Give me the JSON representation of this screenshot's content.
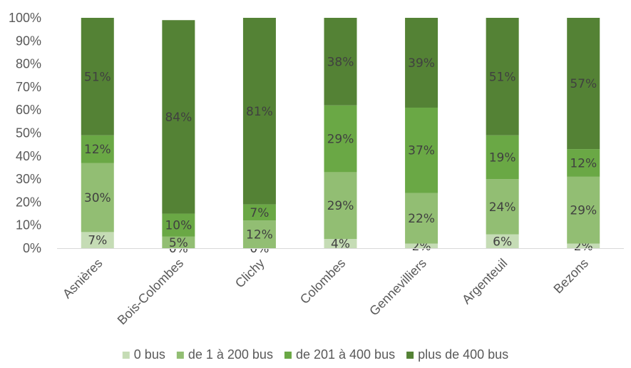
{
  "chart_data": {
    "type": "bar",
    "stacked": true,
    "percent": true,
    "categories": [
      "Asnières",
      "Bois-Colombes",
      "Clichy",
      "Colombes",
      "Gennevilliers",
      "Argenteuil",
      "Bezons"
    ],
    "series": [
      {
        "name": "0 bus",
        "color": "#c5dcb5",
        "values": [
          7,
          0,
          0,
          4,
          2,
          6,
          2
        ],
        "labels": [
          "7%",
          "0%",
          "0%",
          "4%",
          "2%",
          "6%",
          "2%"
        ]
      },
      {
        "name": "de 1 à 200 bus",
        "color": "#92be73",
        "values": [
          30,
          5,
          12,
          29,
          22,
          24,
          29
        ],
        "labels": [
          "30%",
          "5%",
          "12%",
          "29%",
          "22%",
          "24%",
          "29%"
        ]
      },
      {
        "name": "de 201 à 400 bus",
        "color": "#6aa845",
        "values": [
          12,
          10,
          7,
          29,
          37,
          19,
          12
        ],
        "labels": [
          "12%",
          "10%",
          "7%",
          "29%",
          "37%",
          "19%",
          "12%"
        ]
      },
      {
        "name": "plus de 400 bus",
        "color": "#548235",
        "values": [
          51,
          84,
          81,
          38,
          39,
          51,
          57
        ],
        "labels": [
          "51%",
          "84%",
          "81%",
          "38%",
          "39%",
          "51%",
          "57%"
        ]
      }
    ],
    "yticks": [
      "0%",
      "10%",
      "20%",
      "30%",
      "40%",
      "50%",
      "60%",
      "70%",
      "80%",
      "90%",
      "100%"
    ],
    "ylim": [
      0,
      100
    ],
    "grid": false,
    "legend_position": "bottom"
  }
}
